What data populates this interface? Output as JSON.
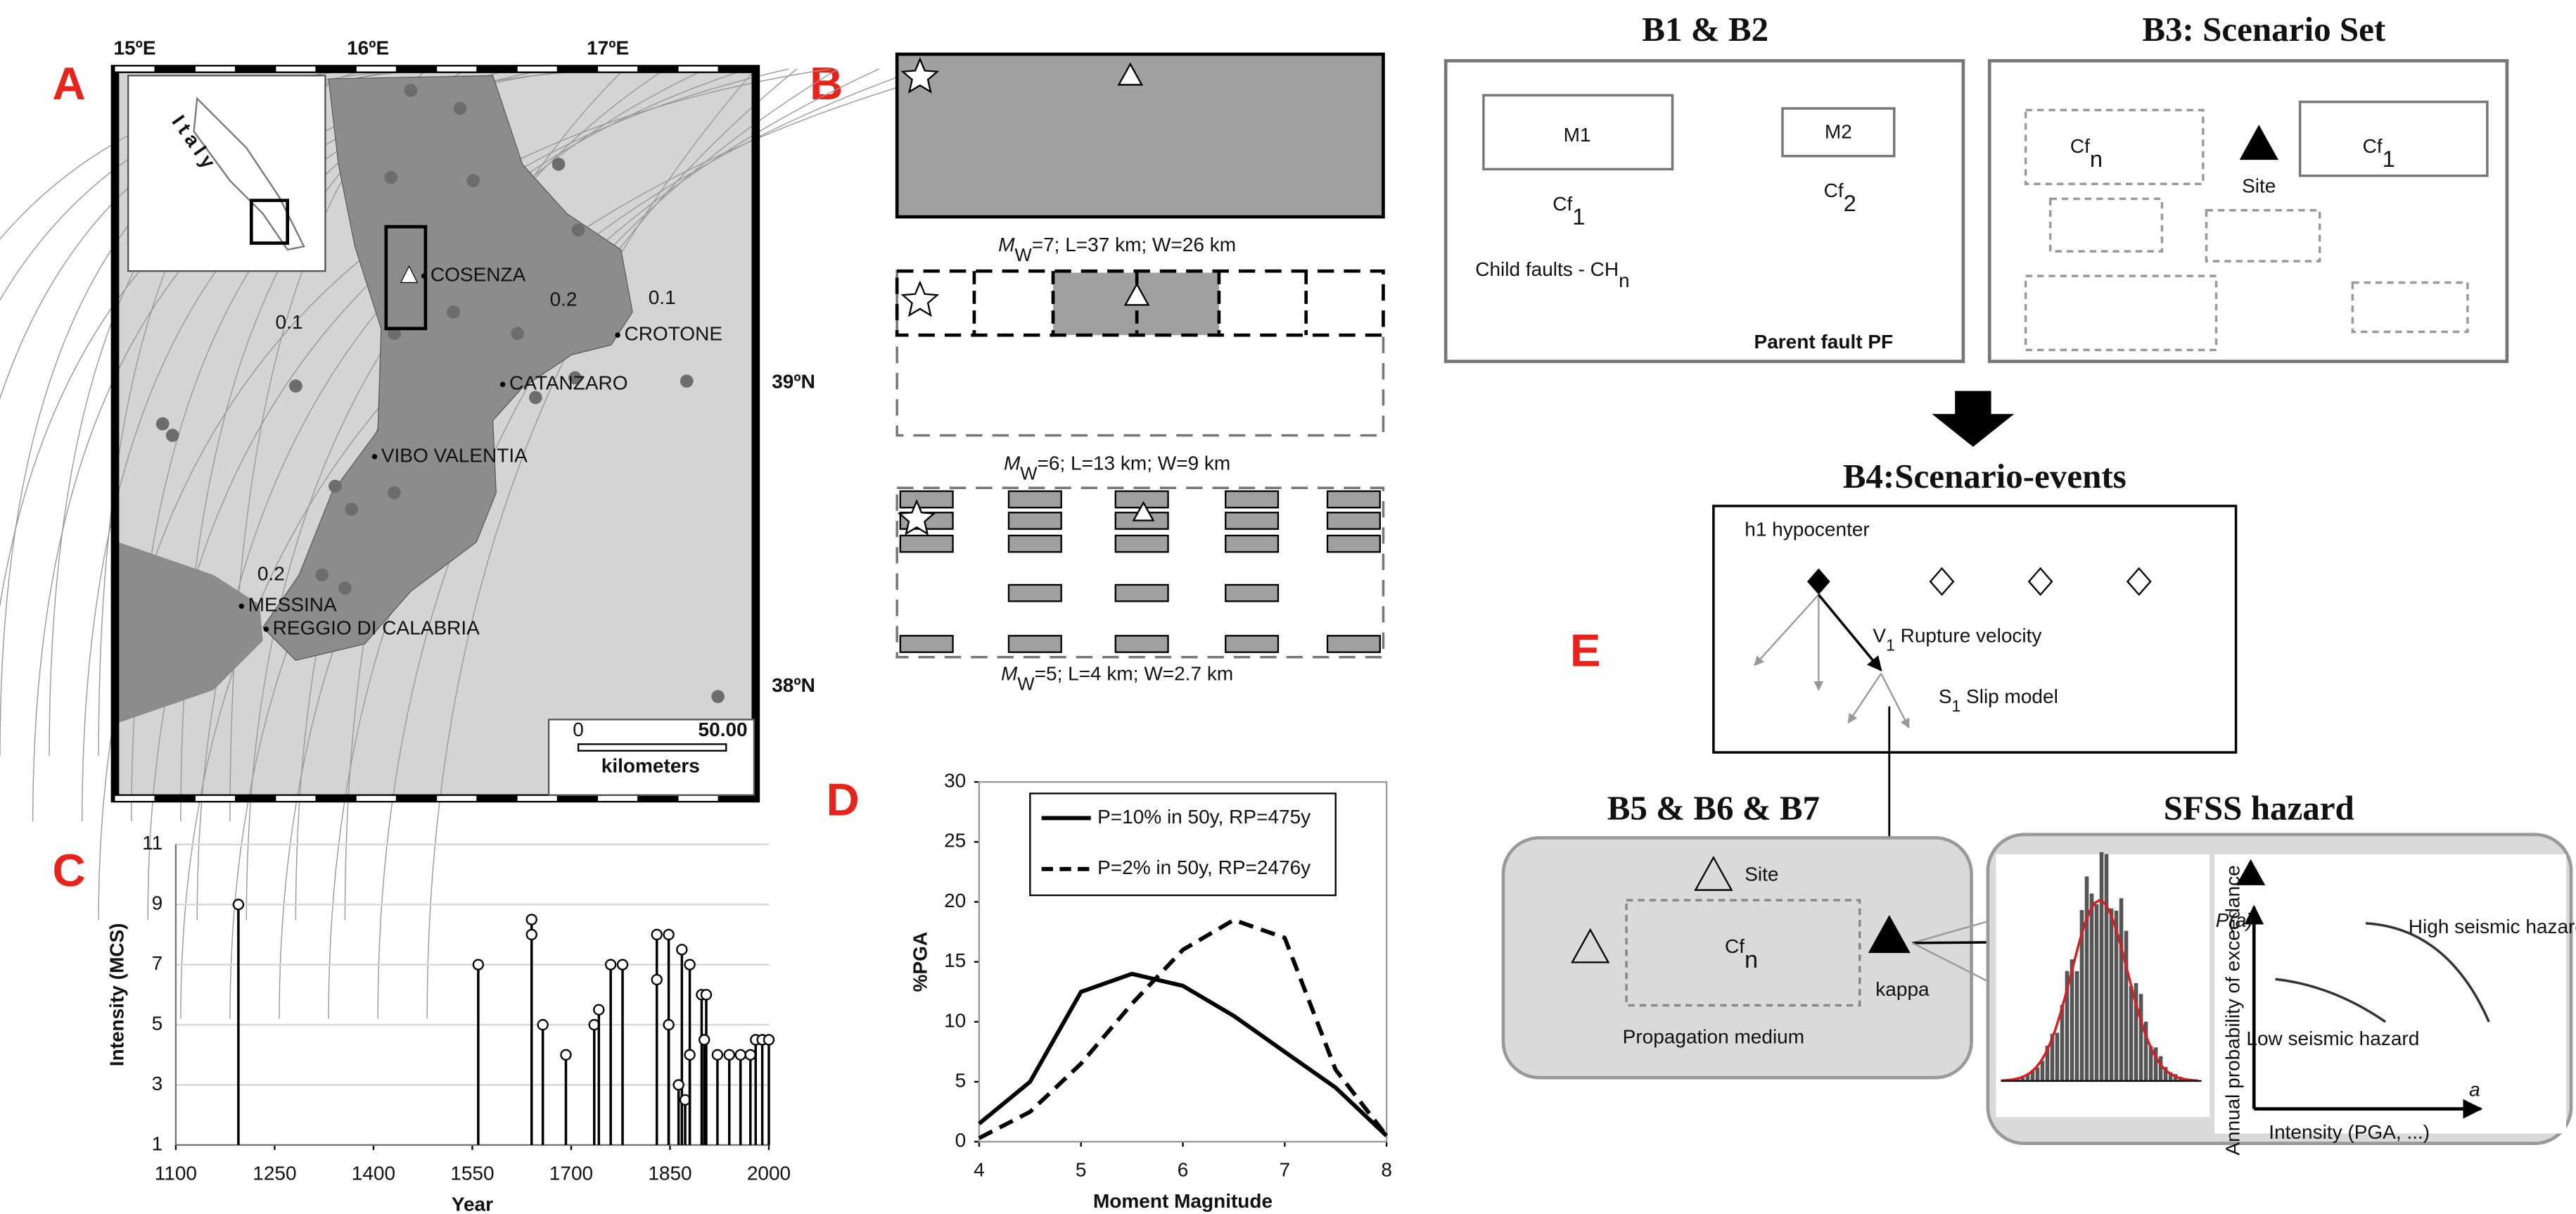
{
  "panel_labels": [
    "A",
    "B",
    "C",
    "D",
    "E"
  ],
  "map": {
    "lon_labels": [
      "15ºE",
      "16ºE",
      "17ºE"
    ],
    "lat_labels": [
      "39ºN",
      "38ºN"
    ],
    "inset_label": "Italy",
    "cities": [
      "COSENZA",
      "CROTONE",
      "CATANZARO",
      "VIBO VALENTIA",
      "MESSINA",
      "REGGIO DI CALABRIA"
    ],
    "contour_labels": [
      "0.1",
      "0.2",
      "0.1",
      "0.2"
    ],
    "scale_ticks": [
      "0",
      "50.00"
    ],
    "scale_unit": "kilometers"
  },
  "ruptures": [
    {
      "symbol": "M",
      "sub": "W",
      "text": "=7; L=37 km; W=26 km"
    },
    {
      "symbol": "M",
      "sub": "W",
      "text": "=6; L=13 km; W=9 km"
    },
    {
      "symbol": "M",
      "sub": "W",
      "text": "=5; L=4 km; W=2.7 km"
    }
  ],
  "diagram": {
    "b12": {
      "title": "B1 & B2",
      "m1": "M1",
      "m2": "M2",
      "cf1": {
        "base": "Cf",
        "sub": "1"
      },
      "cf2": {
        "base": "Cf",
        "sub": "2"
      },
      "child": {
        "base": "Child faults - CH",
        "sub": "n"
      },
      "parent": "Parent fault PF"
    },
    "b3": {
      "title": "B3: Scenario Set",
      "cfn": {
        "base": "Cf",
        "sub": "n"
      },
      "cf1": {
        "base": "Cf",
        "sub": "1"
      },
      "site": "Site"
    },
    "b4": {
      "title": "B4:Scenario-events",
      "hypocenter": "h1 hypocenter",
      "velocity": {
        "base": "V",
        "sub": "1",
        "text": " Rupture velocity"
      },
      "slip": {
        "base": "S",
        "sub": "1",
        "text": " Slip model"
      }
    },
    "b567": {
      "title": "B5 & B6 & B7",
      "site": "Site",
      "cfn": {
        "base": "Cf",
        "sub": "n"
      },
      "kappa": "kappa",
      "medium": "Propagation medium"
    },
    "sfss": {
      "title": "SFSS hazard",
      "p": "P(a)",
      "ylabel": "Annual probability of exceedance",
      "high": "High seismic hazard",
      "low": "Low seismic hazard",
      "xlabel": "Intensity (PGA, ...)",
      "a": "a"
    }
  },
  "chart_data": [
    {
      "type": "stem",
      "xlabel": "Year",
      "ylabel": "Intensity (MCS)",
      "x": [
        1195,
        1559,
        1640,
        1640,
        1657,
        1692,
        1735,
        1742,
        1760,
        1778,
        1830,
        1830,
        1848,
        1848,
        1868,
        1863,
        1873,
        1880,
        1880,
        1898,
        1905,
        1902,
        1922,
        1940,
        1957,
        1972,
        1980,
        1990,
        2000
      ],
      "values": [
        9,
        7,
        8.5,
        8,
        5,
        4,
        5,
        5.5,
        7,
        7,
        8,
        6.5,
        8,
        5,
        7.5,
        3,
        2.5,
        7,
        4,
        6,
        6,
        4.5,
        4,
        4,
        4,
        4,
        4.5,
        4.5,
        4.5
      ],
      "xlim": [
        1100,
        2000
      ],
      "xticks": [
        1100,
        1250,
        1400,
        1550,
        1700,
        1850,
        2000
      ],
      "ylim": [
        1,
        11
      ],
      "yticks": [
        1,
        3,
        5,
        7,
        9,
        11
      ],
      "grid": true,
      "color": "#000000"
    },
    {
      "type": "line",
      "xlabel": "Moment Magnitude",
      "ylabel": "%PGA",
      "x": [
        4,
        4.5,
        5,
        5.5,
        6,
        6.5,
        7,
        7.5,
        8
      ],
      "series": [
        {
          "name": "P=10% in 50y, RP=475y",
          "color": "#000000",
          "style": "solid",
          "values": [
            1.5,
            5,
            12.5,
            14,
            13,
            10.5,
            7.5,
            4.5,
            0.5
          ]
        },
        {
          "name": "P=2% in 50y, RP=2476y",
          "color": "#000000",
          "style": "dashed",
          "values": [
            0.3,
            2.5,
            6.5,
            11.5,
            16,
            18.5,
            17,
            6,
            0.5
          ]
        }
      ],
      "xlim": [
        4,
        8
      ],
      "xticks": [
        4,
        5,
        6,
        7,
        8
      ],
      "ylim": [
        0,
        30
      ],
      "yticks": [
        0,
        5,
        10,
        15,
        20,
        25,
        30
      ],
      "grid": false
    }
  ]
}
